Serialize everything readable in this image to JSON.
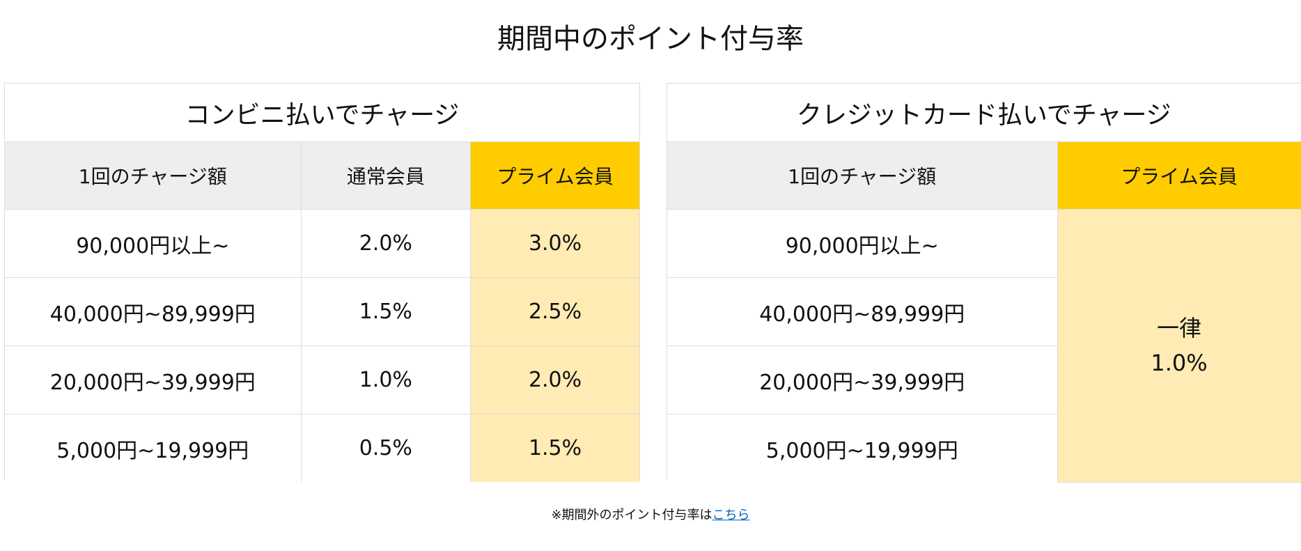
{
  "title": "期間中のポイント付与率",
  "convenience": {
    "caption": "コンビニ払いでチャージ",
    "headers": {
      "amount": "1回のチャージ額",
      "regular": "通常会員",
      "prime": "プライム会員"
    },
    "rows": [
      {
        "amount": "90,000円以上~",
        "regular": "2.0%",
        "prime": "3.0%"
      },
      {
        "amount": "40,000円~89,999円",
        "regular": "1.5%",
        "prime": "2.5%"
      },
      {
        "amount": "20,000円~39,999円",
        "regular": "1.0%",
        "prime": "2.0%"
      },
      {
        "amount": "5,000円~19,999円",
        "regular": "0.5%",
        "prime": "1.5%"
      }
    ]
  },
  "credit": {
    "caption": "クレジットカード払いでチャージ",
    "headers": {
      "amount": "1回のチャージ額",
      "prime": "プライム会員"
    },
    "rows": [
      {
        "amount": "90,000円以上~"
      },
      {
        "amount": "40,000円~89,999円"
      },
      {
        "amount": "20,000円~39,999円"
      },
      {
        "amount": "5,000円~19,999円"
      }
    ],
    "prime_flat": {
      "line1": "一律",
      "line2": "1.0%"
    }
  },
  "footnote": {
    "text": "※期間外のポイント付与率は",
    "link": "こちら"
  },
  "colors": {
    "prime_header": "#ffcc00",
    "prime_cell": "#ffebb3",
    "header_gray": "#eeeeee",
    "link": "#0066c0"
  }
}
